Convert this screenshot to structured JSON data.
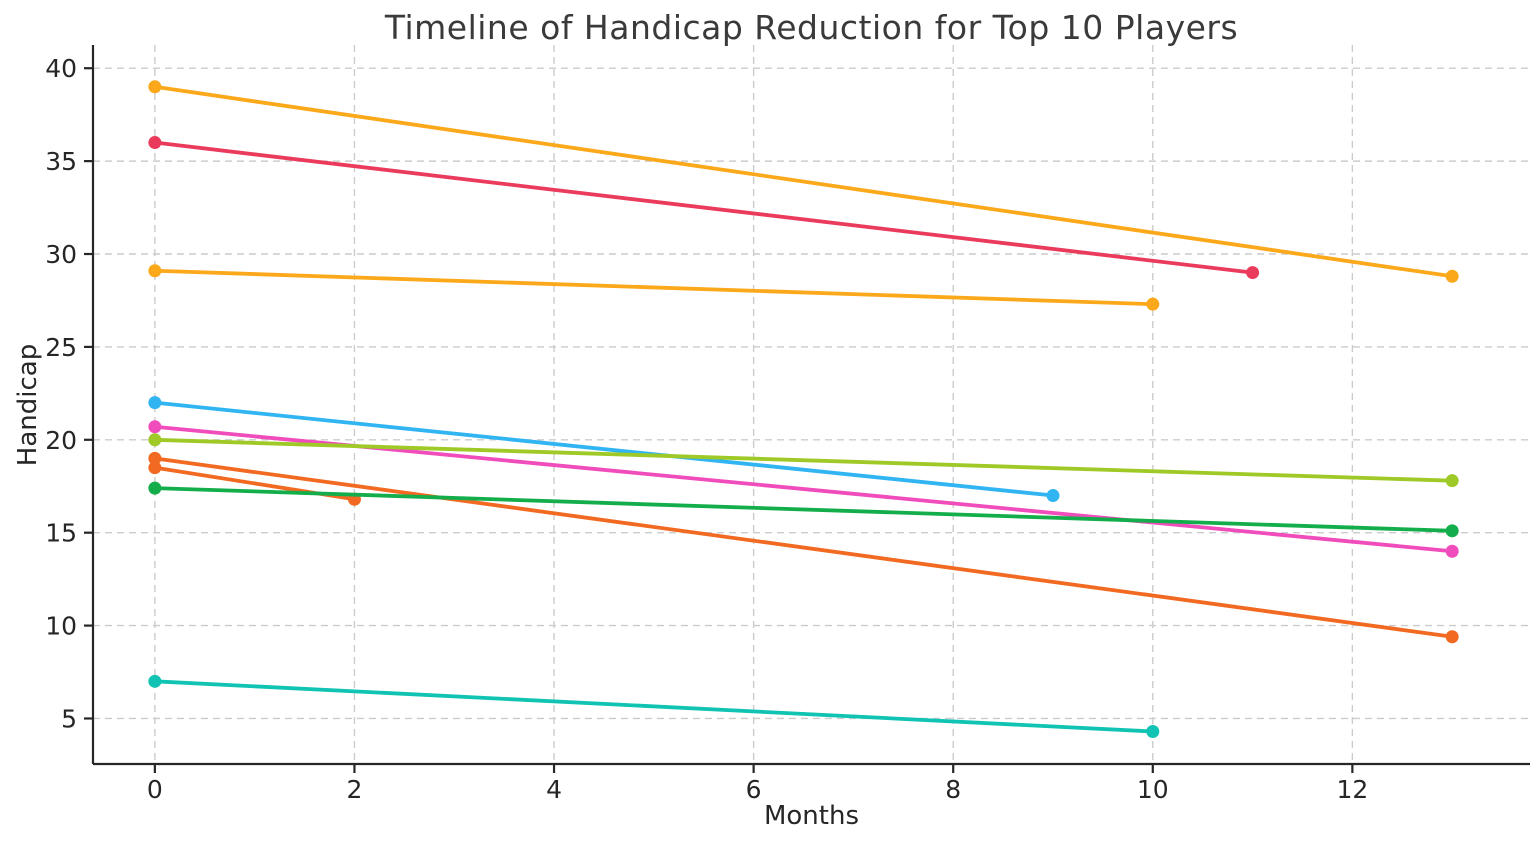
{
  "chart_data": {
    "type": "line",
    "title": "Timeline of Handicap Reduction for Top 10 Players",
    "xlabel": "Months",
    "ylabel": "Handicap",
    "xlim": [
      -0.62,
      13.78
    ],
    "ylim": [
      2.55,
      41.25
    ],
    "xticks": [
      0,
      2,
      4,
      6,
      8,
      10,
      12
    ],
    "yticks": [
      5,
      10,
      15,
      20,
      25,
      30,
      35,
      40
    ],
    "grid": true,
    "legend": "none",
    "marker": "circle-endpoints",
    "colors": {
      "grid": "#cccccc",
      "spine": "#262626",
      "background": "#ffffff",
      "title_text": "#3a3a3a",
      "tick_text": "#262626"
    },
    "series": [
      {
        "id": "series-1",
        "color": "#FBA81B",
        "points": [
          [
            0,
            39.0
          ],
          [
            13,
            28.8
          ]
        ]
      },
      {
        "id": "series-2",
        "color": "#EA3B5D",
        "points": [
          [
            0,
            36.0
          ],
          [
            11,
            29.0
          ]
        ]
      },
      {
        "id": "series-3",
        "color": "#FBA81B",
        "points": [
          [
            0,
            29.1
          ],
          [
            10,
            27.3
          ]
        ]
      },
      {
        "id": "series-4",
        "color": "#31B4F2",
        "points": [
          [
            0,
            22.0
          ],
          [
            9,
            17.0
          ]
        ]
      },
      {
        "id": "series-5",
        "color": "#F04CBB",
        "points": [
          [
            0,
            20.7
          ],
          [
            13,
            14.0
          ]
        ]
      },
      {
        "id": "series-6",
        "color": "#9FC927",
        "points": [
          [
            0,
            20.0
          ],
          [
            13,
            17.8
          ]
        ]
      },
      {
        "id": "series-7",
        "color": "#F26A21",
        "points": [
          [
            0,
            19.0
          ],
          [
            13,
            9.4
          ]
        ]
      },
      {
        "id": "series-8",
        "color": "#F26A21",
        "points": [
          [
            0,
            18.5
          ],
          [
            2,
            16.8
          ]
        ]
      },
      {
        "id": "series-9",
        "color": "#13AE4B",
        "points": [
          [
            0,
            17.4
          ],
          [
            13,
            15.1
          ]
        ]
      },
      {
        "id": "series-10",
        "color": "#10C3B2",
        "points": [
          [
            0,
            7.0
          ],
          [
            10,
            4.3
          ]
        ]
      }
    ]
  }
}
